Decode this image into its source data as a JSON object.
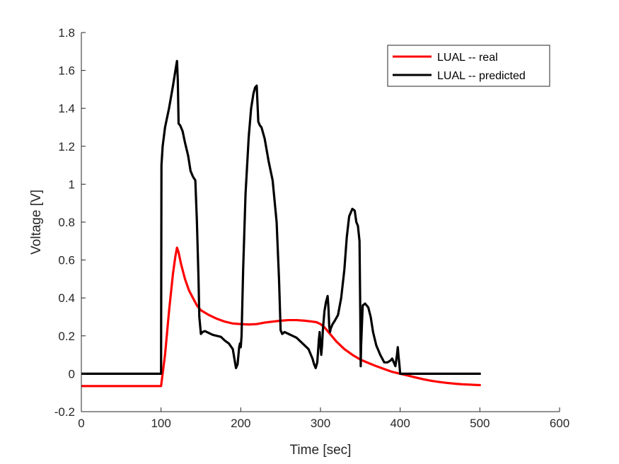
{
  "chart_data": {
    "type": "line",
    "xlabel": "Time [sec]",
    "ylabel": "Voltage [V]",
    "xlim": [
      0,
      600
    ],
    "ylim": [
      -0.2,
      1.8
    ],
    "xticks": [
      0,
      100,
      200,
      300,
      400,
      500,
      600
    ],
    "yticks": [
      -0.2,
      0,
      0.2,
      0.4,
      0.6,
      0.8,
      1,
      1.2,
      1.4,
      1.6,
      1.8
    ],
    "xtick_labels": [
      "0",
      "100",
      "200",
      "300",
      "400",
      "500",
      "600"
    ],
    "ytick_labels": [
      "-0.2",
      "0",
      "0.2",
      "0.4",
      "0.6",
      "0.8",
      "1",
      "1.2",
      "1.4",
      "1.6",
      "1.8"
    ],
    "grid": false,
    "legend_position": "top-right",
    "series": [
      {
        "name": "LUAL -- real",
        "color": "#ff0000",
        "x": [
          0,
          99,
          100,
          105,
          110,
          115,
          118,
          120,
          122,
          125,
          130,
          135,
          140,
          145,
          150,
          160,
          170,
          180,
          190,
          200,
          210,
          220,
          230,
          240,
          250,
          260,
          270,
          280,
          290,
          295,
          300,
          305,
          310,
          320,
          330,
          340,
          350,
          360,
          370,
          380,
          390,
          400,
          410,
          420,
          430,
          440,
          450,
          460,
          470,
          480,
          490,
          500
        ],
        "y": [
          -0.065,
          -0.065,
          -0.065,
          0.1,
          0.33,
          0.53,
          0.62,
          0.665,
          0.64,
          0.58,
          0.5,
          0.44,
          0.4,
          0.36,
          0.335,
          0.31,
          0.29,
          0.275,
          0.265,
          0.262,
          0.26,
          0.262,
          0.27,
          0.275,
          0.28,
          0.283,
          0.283,
          0.28,
          0.275,
          0.272,
          0.262,
          0.245,
          0.22,
          0.17,
          0.13,
          0.1,
          0.075,
          0.057,
          0.04,
          0.025,
          0.01,
          0.0,
          -0.01,
          -0.02,
          -0.03,
          -0.038,
          -0.044,
          -0.049,
          -0.053,
          -0.056,
          -0.058,
          -0.06
        ]
      },
      {
        "name": "LUAL -- predicted",
        "color": "#000000",
        "x": [
          0,
          100,
          100.5,
          102,
          105,
          110,
          115,
          118,
          120,
          121,
          122,
          124,
          127,
          130,
          134,
          137,
          140,
          143,
          145,
          147,
          148,
          150,
          152,
          155,
          160,
          165,
          170,
          175,
          180,
          185,
          190,
          192,
          194,
          196,
          198,
          199,
          200,
          201,
          203,
          206,
          210,
          213,
          216,
          218,
          220,
          222,
          224,
          226,
          230,
          235,
          240,
          245,
          248,
          250,
          252,
          255,
          260,
          265,
          270,
          275,
          280,
          285,
          290,
          292,
          294,
          296,
          298,
          299,
          300,
          301,
          302,
          303,
          305,
          307,
          309,
          310,
          311,
          312,
          313,
          315,
          318,
          322,
          326,
          330,
          333,
          336,
          340,
          343,
          345,
          347,
          349,
          350,
          350.5,
          351,
          353,
          356,
          360,
          363,
          366,
          370,
          375,
          380,
          384,
          388,
          390,
          392,
          394,
          396,
          397,
          398,
          399,
          400,
          400.5,
          401,
          500
        ],
        "y": [
          0.0,
          0.0,
          1.1,
          1.2,
          1.3,
          1.4,
          1.52,
          1.6,
          1.65,
          1.55,
          1.32,
          1.31,
          1.28,
          1.22,
          1.15,
          1.07,
          1.04,
          1.02,
          0.8,
          0.5,
          0.3,
          0.21,
          0.22,
          0.225,
          0.215,
          0.205,
          0.2,
          0.195,
          0.175,
          0.16,
          0.13,
          0.08,
          0.03,
          0.05,
          0.14,
          0.16,
          0.14,
          0.2,
          0.55,
          0.95,
          1.25,
          1.4,
          1.48,
          1.51,
          1.52,
          1.33,
          1.31,
          1.3,
          1.24,
          1.12,
          1.02,
          0.8,
          0.5,
          0.23,
          0.21,
          0.22,
          0.21,
          0.2,
          0.19,
          0.17,
          0.15,
          0.13,
          0.08,
          0.05,
          0.03,
          0.06,
          0.18,
          0.22,
          0.15,
          0.1,
          0.15,
          0.23,
          0.33,
          0.38,
          0.41,
          0.35,
          0.25,
          0.22,
          0.24,
          0.26,
          0.28,
          0.31,
          0.4,
          0.55,
          0.72,
          0.83,
          0.87,
          0.86,
          0.8,
          0.78,
          0.7,
          0.3,
          0.04,
          0.15,
          0.36,
          0.37,
          0.35,
          0.3,
          0.22,
          0.15,
          0.1,
          0.06,
          0.06,
          0.07,
          0.08,
          0.06,
          0.04,
          0.1,
          0.14,
          0.09,
          0.05,
          0.0,
          0.0,
          0.0,
          0.0
        ]
      }
    ]
  }
}
